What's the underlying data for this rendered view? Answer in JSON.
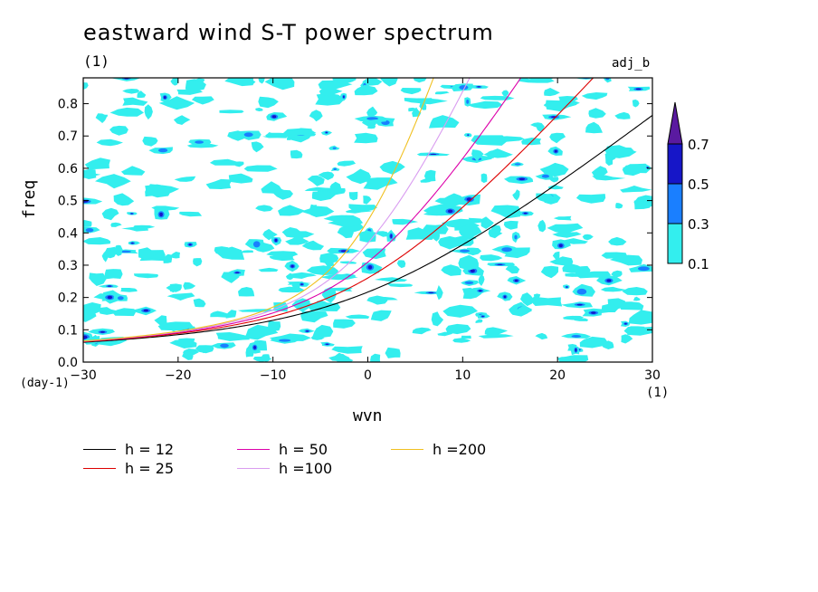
{
  "chart_data": {
    "type": "heatmap",
    "title": "eastward wind S-T power spectrum",
    "subtitle": "(1)",
    "tag": "adj_b",
    "xlabel": "wvn",
    "ylabel": "freq",
    "x_units": "(1)",
    "y_units": "(day-1)",
    "xlim": [
      -30,
      30
    ],
    "ylim": [
      0,
      0.88
    ],
    "x_ticks": [
      "-30",
      "-20",
      "-10",
      "0",
      "10",
      "20",
      "30"
    ],
    "y_ticks": [
      "0.0",
      "0.1",
      "0.2",
      "0.3",
      "0.4",
      "0.5",
      "0.6",
      "0.7",
      "0.8"
    ],
    "colorbar": {
      "levels": [
        "0.1",
        "0.3",
        "0.5",
        "0.7"
      ],
      "colors": [
        "#33eeee",
        "#1a7fff",
        "#1616c8",
        "#5a1aa0"
      ]
    },
    "series": [
      {
        "name": "h = 12",
        "h": 12,
        "color": "#000000"
      },
      {
        "name": "h = 25",
        "h": 25,
        "color": "#dd0000"
      },
      {
        "name": "h = 50",
        "h": 50,
        "color": "#dd00aa"
      },
      {
        "name": "h =100",
        "h": 100,
        "color": "#d99cf0"
      },
      {
        "name": "h =200",
        "h": 200,
        "color": "#f0c020"
      }
    ]
  }
}
